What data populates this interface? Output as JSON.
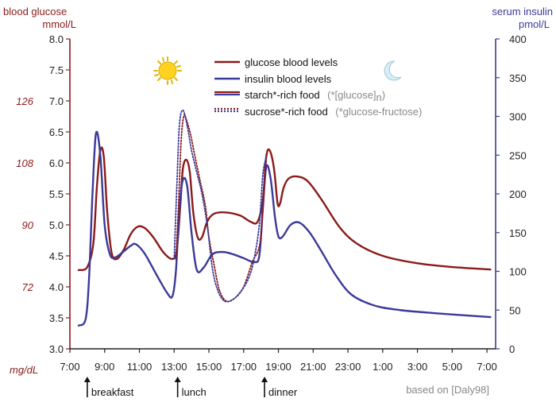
{
  "chart_data": {
    "type": "line",
    "left_axis": {
      "title_line1": "blood glucose",
      "title_line2": "mmol/L",
      "ylim": [
        3.0,
        8.0
      ],
      "ticks": [
        "3.0",
        "3.5",
        "4.0",
        "4.5",
        "5.0",
        "5.5",
        "6.0",
        "6.5",
        "7.0",
        "7.5",
        "8.0"
      ],
      "secondary_unit": "mg/dL",
      "secondary_ticks": [
        {
          "mmol": 4.0,
          "label": "72"
        },
        {
          "mmol": 5.0,
          "label": "90"
        },
        {
          "mmol": 6.0,
          "label": "108"
        },
        {
          "mmol": 7.0,
          "label": "126"
        }
      ]
    },
    "right_axis": {
      "title_line1": "serum insulin",
      "title_line2": "pmol/L",
      "ylim": [
        0,
        400
      ],
      "ticks": [
        "0",
        "50",
        "100",
        "150",
        "200",
        "250",
        "300",
        "350",
        "400"
      ]
    },
    "x_axis": {
      "start_hour": 7,
      "end_hour": 31.5,
      "ticks": [
        {
          "h": 7,
          "label": "7:00"
        },
        {
          "h": 9,
          "label": "9:00"
        },
        {
          "h": 11,
          "label": "11:00"
        },
        {
          "h": 13,
          "label": "13:00"
        },
        {
          "h": 15,
          "label": "15:00"
        },
        {
          "h": 17,
          "label": "17:00"
        },
        {
          "h": 19,
          "label": "19:00"
        },
        {
          "h": 21,
          "label": "21:00"
        },
        {
          "h": 23,
          "label": "23:00"
        },
        {
          "h": 25,
          "label": "1:00"
        },
        {
          "h": 27,
          "label": "3:00"
        },
        {
          "h": 29,
          "label": "5:00"
        },
        {
          "h": 31,
          "label": "7:00"
        }
      ]
    },
    "meals": [
      {
        "h": 8.0,
        "label": "breakfast"
      },
      {
        "h": 13.2,
        "label": "lunch"
      },
      {
        "h": 18.2,
        "label": "dinner"
      }
    ],
    "series": [
      {
        "name": "glucose blood levels",
        "axis": "left",
        "color": "#8b1a1a",
        "style": "solid",
        "points": [
          [
            7.5,
            4.27
          ],
          [
            8.0,
            4.32
          ],
          [
            8.35,
            4.7
          ],
          [
            8.55,
            5.6
          ],
          [
            8.75,
            6.2
          ],
          [
            8.95,
            6.1
          ],
          [
            9.15,
            5.2
          ],
          [
            9.4,
            4.55
          ],
          [
            9.7,
            4.45
          ],
          [
            10.1,
            4.6
          ],
          [
            10.5,
            4.85
          ],
          [
            10.9,
            4.97
          ],
          [
            11.3,
            4.95
          ],
          [
            11.8,
            4.8
          ],
          [
            12.4,
            4.55
          ],
          [
            12.9,
            4.45
          ],
          [
            13.15,
            4.6
          ],
          [
            13.35,
            5.3
          ],
          [
            13.5,
            5.9
          ],
          [
            13.7,
            6.05
          ],
          [
            13.9,
            5.85
          ],
          [
            14.1,
            5.2
          ],
          [
            14.35,
            4.8
          ],
          [
            14.6,
            4.8
          ],
          [
            14.9,
            5.05
          ],
          [
            15.3,
            5.18
          ],
          [
            16.0,
            5.2
          ],
          [
            16.8,
            5.15
          ],
          [
            17.4,
            5.05
          ],
          [
            17.8,
            5.05
          ],
          [
            18.1,
            5.4
          ],
          [
            18.3,
            6.1
          ],
          [
            18.5,
            6.2
          ],
          [
            18.75,
            5.9
          ],
          [
            18.95,
            5.35
          ],
          [
            19.1,
            5.35
          ],
          [
            19.3,
            5.6
          ],
          [
            19.6,
            5.75
          ],
          [
            20.1,
            5.78
          ],
          [
            20.7,
            5.7
          ],
          [
            21.5,
            5.4
          ],
          [
            22.5,
            4.97
          ],
          [
            23.5,
            4.7
          ],
          [
            25,
            4.5
          ],
          [
            27,
            4.38
          ],
          [
            29,
            4.32
          ],
          [
            31.2,
            4.28
          ]
        ]
      },
      {
        "name": "insulin blood levels",
        "axis": "right",
        "color": "#3a3a9a",
        "style": "solid",
        "points": [
          [
            7.5,
            30
          ],
          [
            7.9,
            38
          ],
          [
            8.1,
            90
          ],
          [
            8.3,
            200
          ],
          [
            8.5,
            278
          ],
          [
            8.75,
            250
          ],
          [
            9.0,
            160
          ],
          [
            9.3,
            122
          ],
          [
            9.6,
            118
          ],
          [
            10.0,
            124
          ],
          [
            10.5,
            133
          ],
          [
            10.8,
            135
          ],
          [
            11.3,
            123
          ],
          [
            12.0,
            95
          ],
          [
            12.6,
            72
          ],
          [
            12.9,
            68
          ],
          [
            13.1,
            100
          ],
          [
            13.3,
            180
          ],
          [
            13.5,
            218
          ],
          [
            13.75,
            210
          ],
          [
            14.0,
            150
          ],
          [
            14.3,
            102
          ],
          [
            14.7,
            105
          ],
          [
            15.2,
            122
          ],
          [
            15.8,
            125
          ],
          [
            16.4,
            122
          ],
          [
            17.0,
            117
          ],
          [
            17.6,
            112
          ],
          [
            17.9,
            120
          ],
          [
            18.1,
            180
          ],
          [
            18.3,
            235
          ],
          [
            18.55,
            220
          ],
          [
            18.8,
            170
          ],
          [
            19.0,
            145
          ],
          [
            19.25,
            145
          ],
          [
            19.7,
            160
          ],
          [
            20.2,
            163
          ],
          [
            20.8,
            150
          ],
          [
            21.5,
            125
          ],
          [
            22.3,
            95
          ],
          [
            23.2,
            70
          ],
          [
            24.5,
            56
          ],
          [
            26,
            50
          ],
          [
            28,
            46
          ],
          [
            31.2,
            41
          ]
        ]
      },
      {
        "name": "starch*-rich food",
        "axis": "left",
        "color": "#8b1a1a",
        "style": "dotted",
        "points": [
          [
            13.1,
            4.45
          ],
          [
            13.25,
            5.3
          ],
          [
            13.4,
            6.35
          ],
          [
            13.55,
            6.75
          ],
          [
            13.7,
            6.7
          ],
          [
            13.95,
            6.45
          ],
          [
            14.2,
            6.1
          ],
          [
            14.5,
            5.7
          ],
          [
            14.8,
            5.3
          ],
          [
            15.0,
            4.8
          ],
          [
            15.3,
            4.35
          ],
          [
            15.6,
            3.95
          ],
          [
            16.0,
            3.77
          ],
          [
            16.5,
            3.82
          ],
          [
            17.0,
            4.0
          ],
          [
            17.5,
            4.4
          ],
          [
            17.9,
            4.65
          ],
          [
            18.1,
            5.2
          ],
          [
            18.3,
            6.1
          ]
        ]
      },
      {
        "name": "sucrose*-rich food",
        "axis": "left",
        "color": "#3a3a9a",
        "style": "dotted",
        "points": [
          [
            13.0,
            4.45
          ],
          [
            13.15,
            5.6
          ],
          [
            13.3,
            6.6
          ],
          [
            13.5,
            6.85
          ],
          [
            13.75,
            6.6
          ],
          [
            14.0,
            6.2
          ],
          [
            14.3,
            5.85
          ],
          [
            14.6,
            5.5
          ],
          [
            14.9,
            5.0
          ],
          [
            15.2,
            4.3
          ],
          [
            15.5,
            3.95
          ],
          [
            15.9,
            3.77
          ],
          [
            16.4,
            3.8
          ],
          [
            16.9,
            3.95
          ],
          [
            17.3,
            4.15
          ],
          [
            17.6,
            4.45
          ],
          [
            17.9,
            5.0
          ],
          [
            18.1,
            5.8
          ],
          [
            18.3,
            6.1
          ]
        ]
      }
    ],
    "legend": [
      {
        "label": "glucose blood levels",
        "note": ""
      },
      {
        "label": "insulin blood levels",
        "note": ""
      },
      {
        "label": "starch*-rich food",
        "note_prefix": "(*[glucose]",
        "note_sub": "n",
        "note_suffix": ")"
      },
      {
        "label": "sucrose*-rich food",
        "note": "(*glucose-fructose)"
      }
    ],
    "source": "based on [Daly98]"
  }
}
